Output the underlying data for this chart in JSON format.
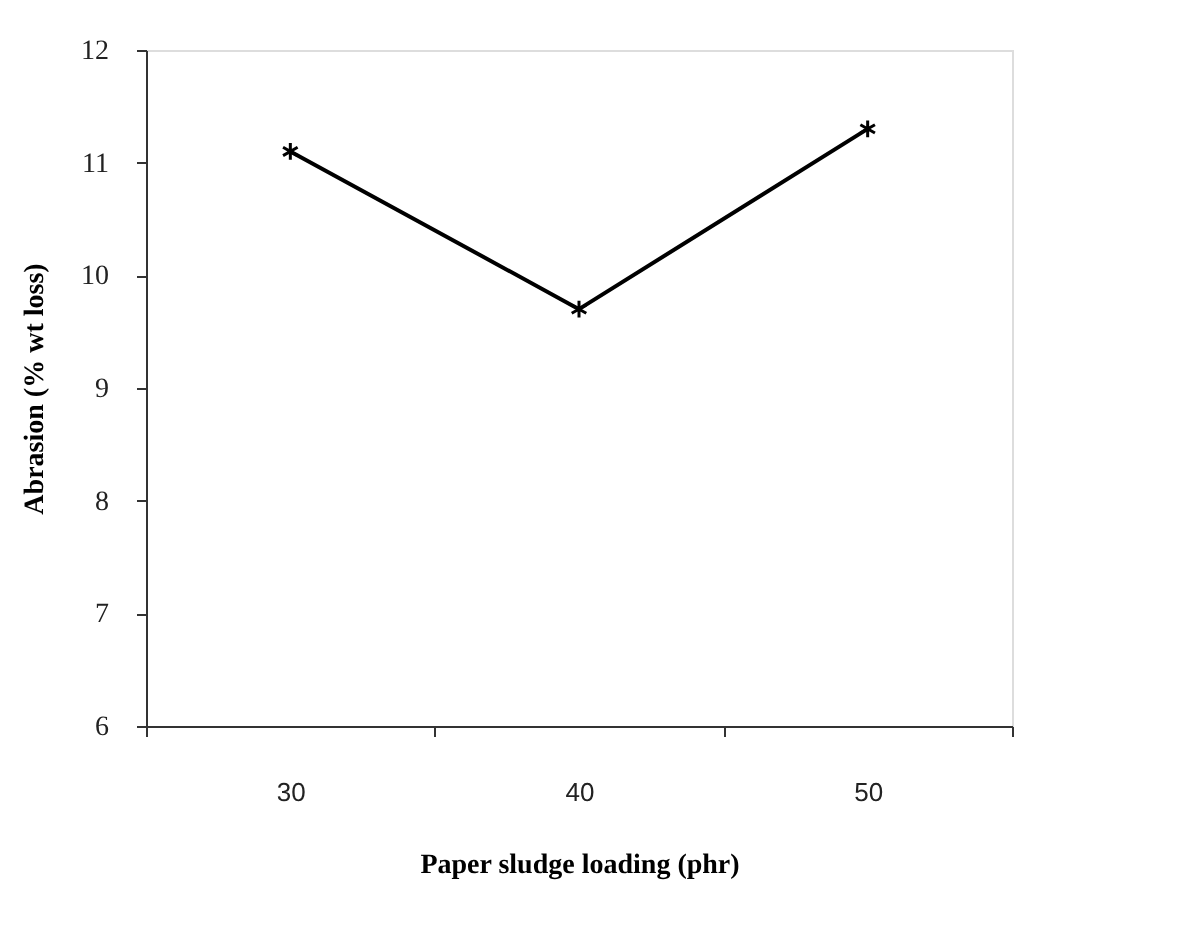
{
  "chart_data": {
    "type": "line",
    "xlabel": "Paper sludge loading (phr)",
    "ylabel": "Abrasion (% wt loss)",
    "categories": [
      "30",
      "40",
      "50"
    ],
    "series": [
      {
        "color": "#000000",
        "values": [
          11.1,
          9.7,
          11.3
        ]
      }
    ],
    "ylim": [
      6,
      12
    ],
    "yticks": [
      6,
      7,
      8,
      9,
      10,
      11,
      12
    ],
    "grid": false,
    "marker": "cross",
    "line_style": "solid"
  }
}
